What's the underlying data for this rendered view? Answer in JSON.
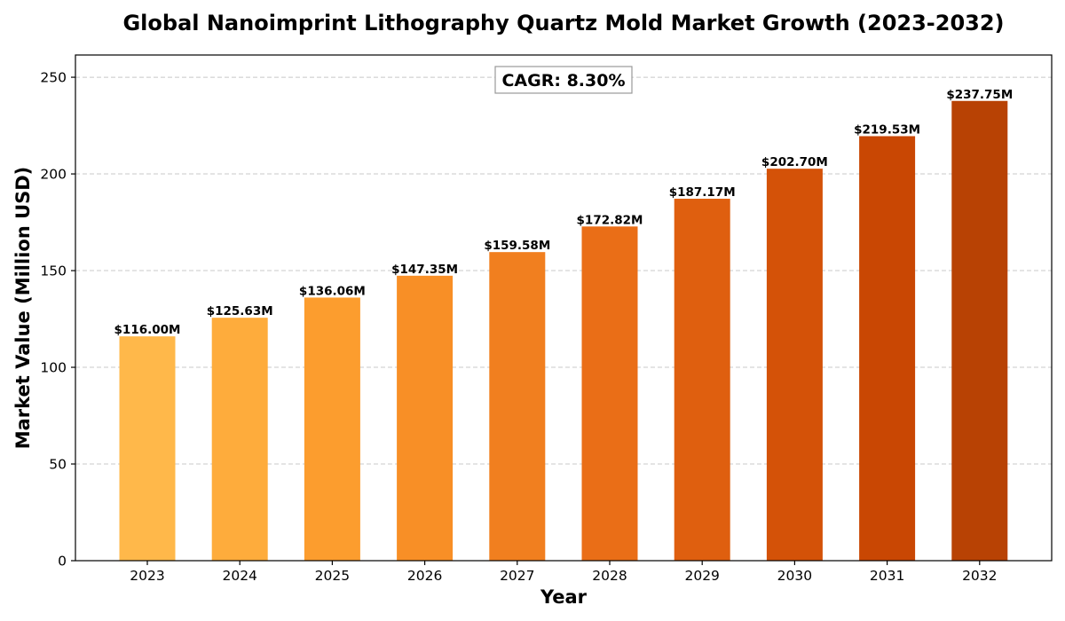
{
  "chart_data": {
    "type": "bar",
    "title": "Global Nanoimprint Lithography Quartz Mold Market Growth (2023-2032)",
    "xlabel": "Year",
    "ylabel": "Market Value (Million USD)",
    "categories": [
      "2023",
      "2024",
      "2025",
      "2026",
      "2027",
      "2028",
      "2029",
      "2030",
      "2031",
      "2032"
    ],
    "values": [
      116.0,
      125.63,
      136.06,
      147.35,
      159.58,
      172.82,
      187.17,
      202.7,
      219.53,
      237.75
    ],
    "data_labels": [
      "$116.00M",
      "$125.63M",
      "$136.06M",
      "$147.35M",
      "$159.58M",
      "$172.82M",
      "$187.17M",
      "$202.70M",
      "$219.53M",
      "$237.75M"
    ],
    "bar_colors": [
      "#FFB84A",
      "#FEAC3C",
      "#FC9D2E",
      "#F88F26",
      "#F17F1F",
      "#EA6E17",
      "#DF5F0F",
      "#D45208",
      "#C94703",
      "#B84204"
    ],
    "ylim": [
      0,
      261.5
    ],
    "yticks": [
      0,
      50,
      100,
      150,
      200,
      250
    ],
    "grid": true,
    "annotation": "CAGR: 8.30%"
  }
}
